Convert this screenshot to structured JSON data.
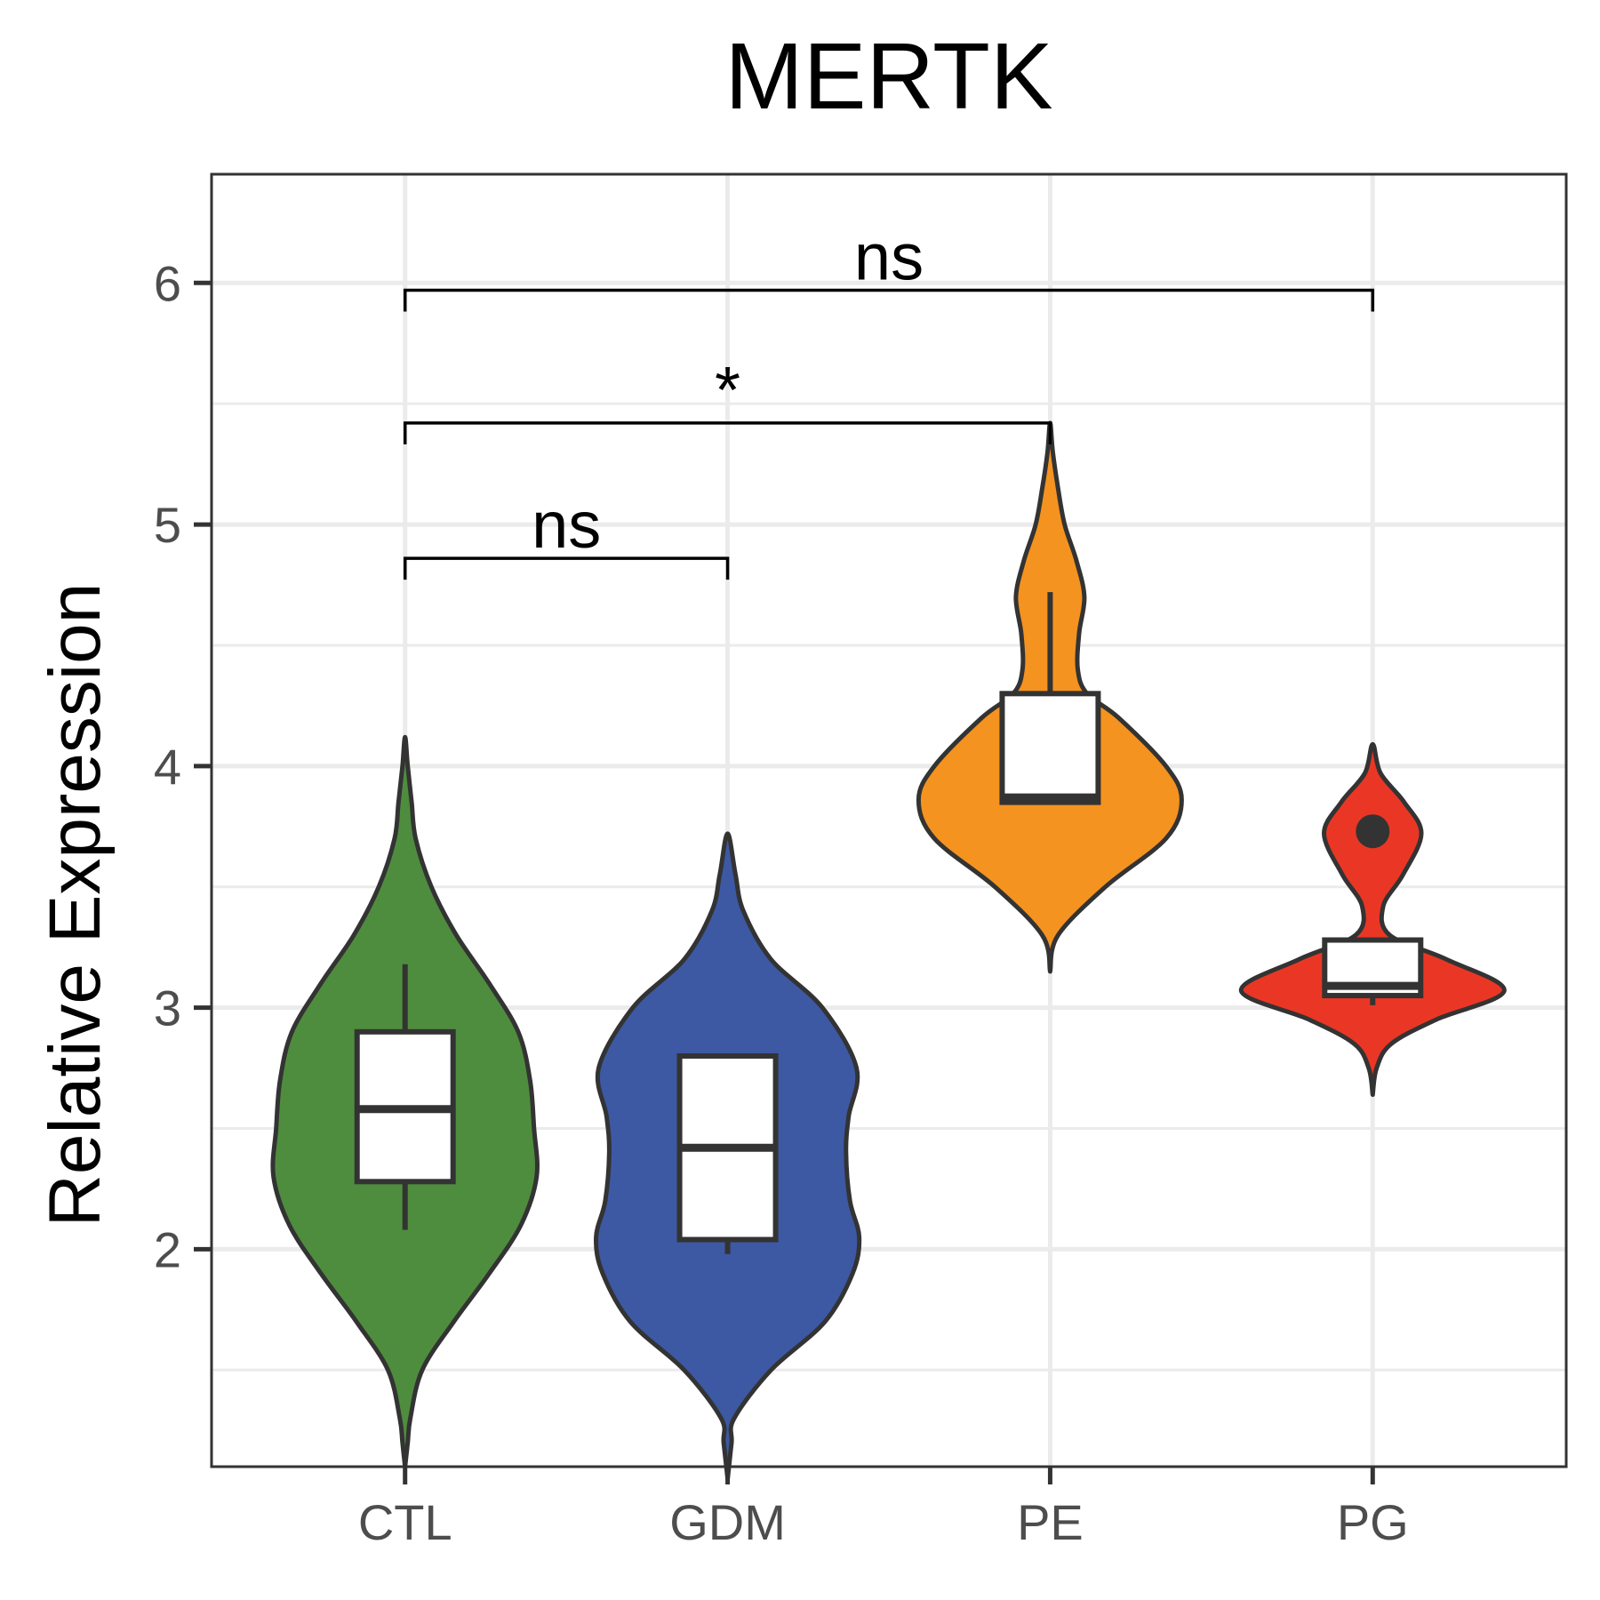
{
  "chart_data": {
    "type": "violin",
    "title": "MERTK",
    "xlabel": "",
    "ylabel": "Relative Expression",
    "ylim": [
      1.1,
      6.45
    ],
    "yticks": [
      2,
      3,
      4,
      5,
      6
    ],
    "categories": [
      "CTL",
      "GDM",
      "PE",
      "PG"
    ],
    "grid": true,
    "legend": "none",
    "series": [
      {
        "category": "CTL",
        "color": "#4f8d3e",
        "violin_range": [
          1.1,
          4.12
        ],
        "density": [
          [
            1.1,
            0.0
          ],
          [
            1.2,
            0.02
          ],
          [
            1.3,
            0.04
          ],
          [
            1.5,
            0.13
          ],
          [
            1.7,
            0.37
          ],
          [
            1.9,
            0.64
          ],
          [
            2.1,
            0.88
          ],
          [
            2.3,
            1.0
          ],
          [
            2.5,
            0.98
          ],
          [
            2.7,
            0.95
          ],
          [
            2.9,
            0.86
          ],
          [
            3.1,
            0.64
          ],
          [
            3.3,
            0.39
          ],
          [
            3.5,
            0.2
          ],
          [
            3.7,
            0.08
          ],
          [
            3.85,
            0.05
          ],
          [
            4.0,
            0.02
          ],
          [
            4.12,
            0.0
          ]
        ],
        "box": {
          "q1": 2.28,
          "median": 2.58,
          "q3": 2.9,
          "whisker_low": 2.08,
          "whisker_high": 3.18
        },
        "outliers": []
      },
      {
        "category": "GDM",
        "color": "#3d59a3",
        "violin_range": [
          1.05,
          3.72
        ],
        "density": [
          [
            1.05,
            0.0
          ],
          [
            1.2,
            0.03
          ],
          [
            1.3,
            0.05
          ],
          [
            1.5,
            0.33
          ],
          [
            1.7,
            0.74
          ],
          [
            1.9,
            0.95
          ],
          [
            2.05,
            1.0
          ],
          [
            2.2,
            0.93
          ],
          [
            2.4,
            0.9
          ],
          [
            2.55,
            0.92
          ],
          [
            2.75,
            0.98
          ],
          [
            3.0,
            0.72
          ],
          [
            3.2,
            0.33
          ],
          [
            3.4,
            0.12
          ],
          [
            3.55,
            0.06
          ],
          [
            3.72,
            0.0
          ]
        ],
        "box": {
          "q1": 2.04,
          "median": 2.42,
          "q3": 2.8,
          "whisker_low": 1.98,
          "whisker_high": 2.8
        },
        "outliers": []
      },
      {
        "category": "PE",
        "color": "#f49320",
        "violin_range": [
          3.15,
          5.42
        ],
        "density": [
          [
            3.15,
            0.0
          ],
          [
            3.3,
            0.06
          ],
          [
            3.5,
            0.42
          ],
          [
            3.7,
            0.88
          ],
          [
            3.86,
            1.0
          ],
          [
            4.0,
            0.88
          ],
          [
            4.2,
            0.52
          ],
          [
            4.3,
            0.28
          ],
          [
            4.4,
            0.21
          ],
          [
            4.55,
            0.22
          ],
          [
            4.7,
            0.26
          ],
          [
            4.85,
            0.2
          ],
          [
            5.0,
            0.11
          ],
          [
            5.15,
            0.06
          ],
          [
            5.3,
            0.02
          ],
          [
            5.42,
            0.0
          ]
        ],
        "box": {
          "q1": 3.85,
          "median": 3.87,
          "q3": 4.3,
          "whisker_low": 3.85,
          "whisker_high": 4.72
        },
        "outliers": []
      },
      {
        "category": "PG",
        "color": "#ea3725",
        "violin_range": [
          2.64,
          4.09
        ],
        "density": [
          [
            2.64,
            0.0
          ],
          [
            2.75,
            0.03
          ],
          [
            2.85,
            0.14
          ],
          [
            2.95,
            0.48
          ],
          [
            3.07,
            1.0
          ],
          [
            3.2,
            0.56
          ],
          [
            3.3,
            0.13
          ],
          [
            3.42,
            0.08
          ],
          [
            3.55,
            0.23
          ],
          [
            3.72,
            0.37
          ],
          [
            3.85,
            0.24
          ],
          [
            3.97,
            0.06
          ],
          [
            4.09,
            0.0
          ]
        ],
        "box": {
          "q1": 3.05,
          "median": 3.09,
          "q3": 3.28,
          "whisker_low": 3.01,
          "whisker_high": 3.28
        },
        "outliers": [
          3.73
        ]
      }
    ],
    "comparisons": [
      {
        "from": "CTL",
        "to": "GDM",
        "y": 4.86,
        "label": "ns"
      },
      {
        "from": "CTL",
        "to": "PE",
        "y": 5.42,
        "label": "*"
      },
      {
        "from": "CTL",
        "to": "PG",
        "y": 5.97,
        "label": "ns"
      }
    ]
  }
}
